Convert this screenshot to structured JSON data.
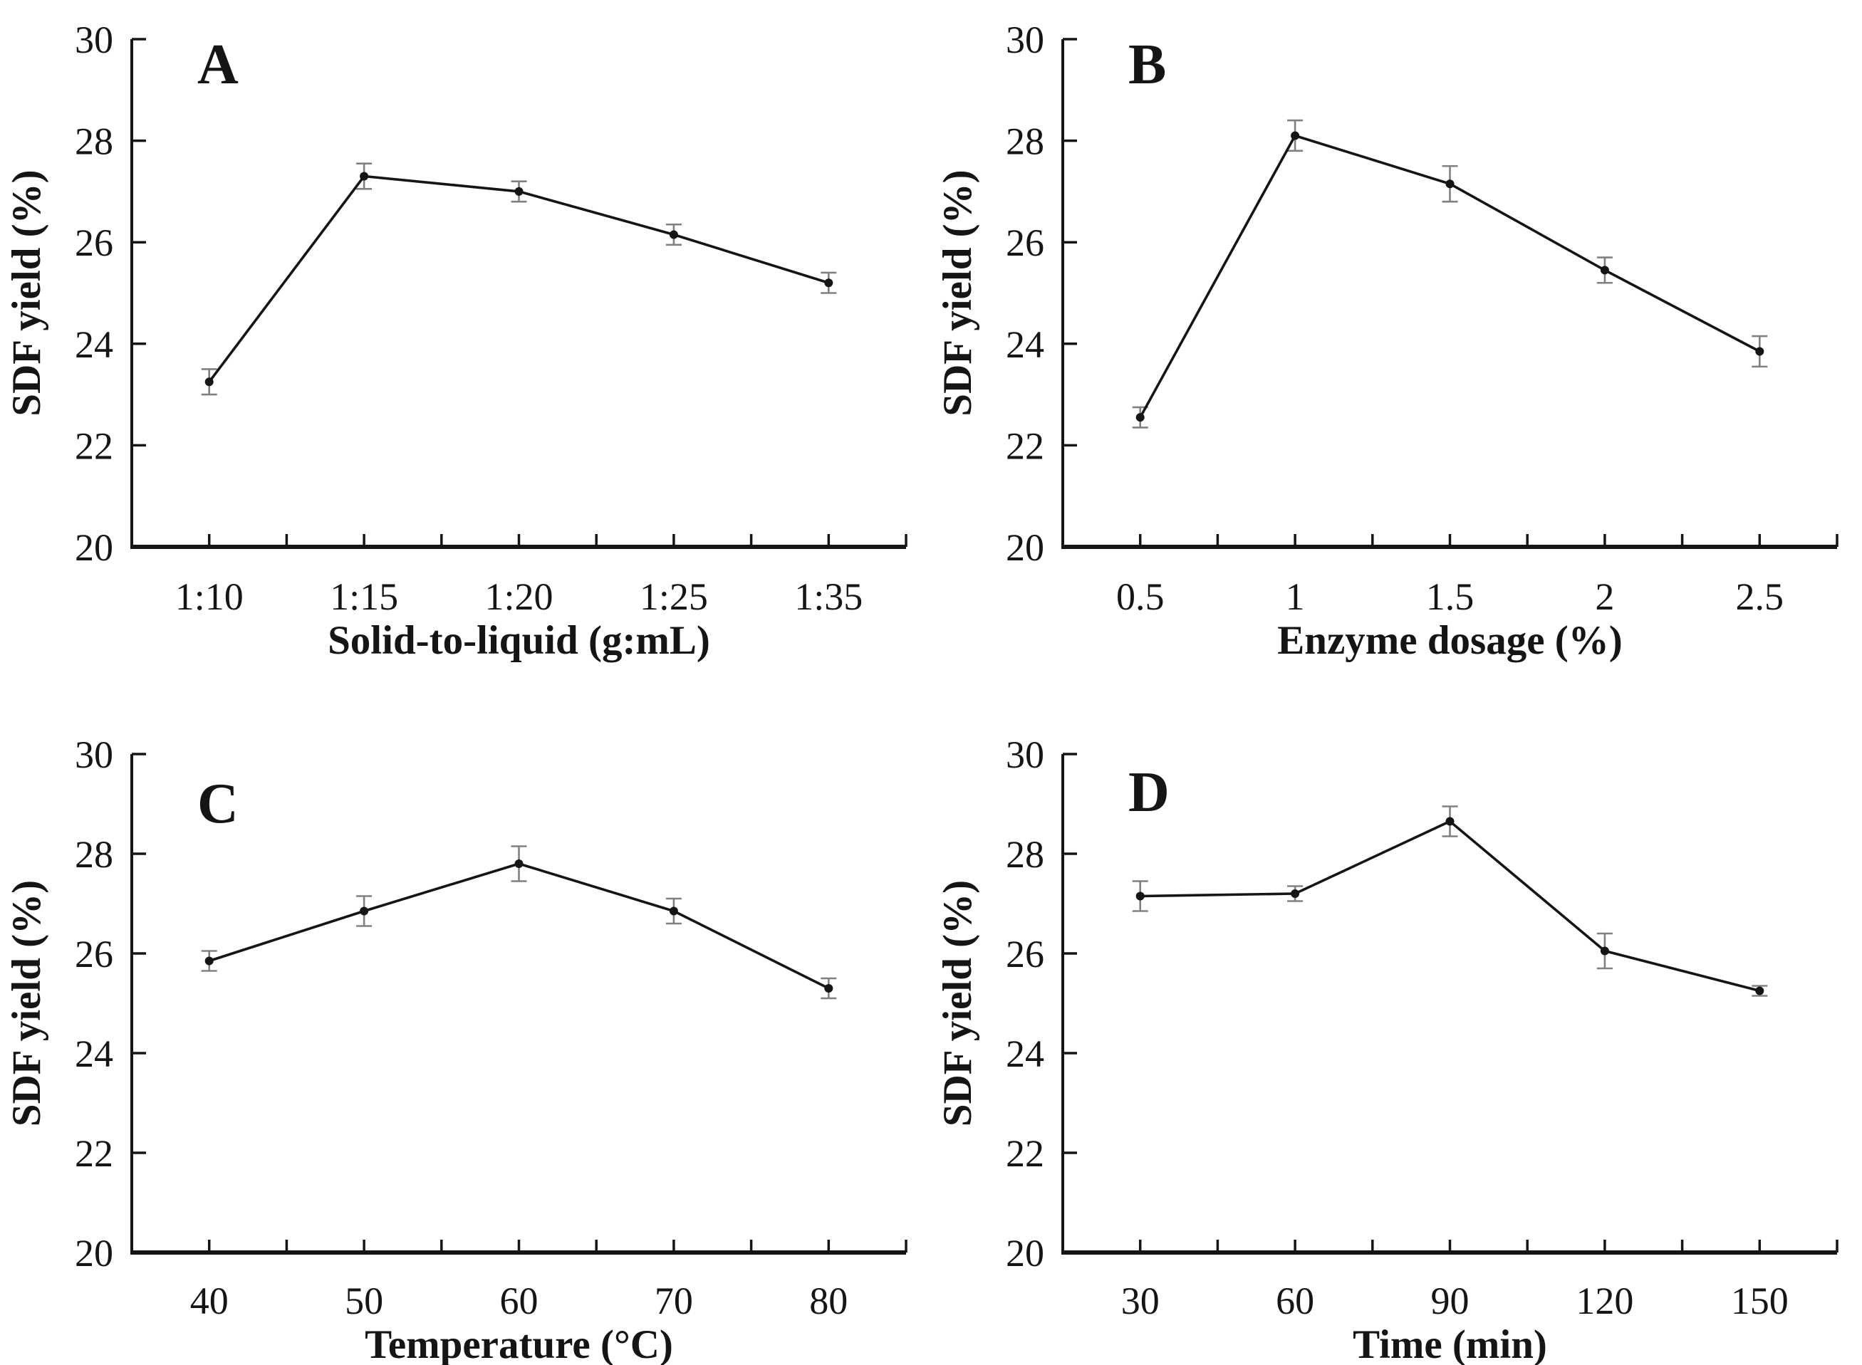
{
  "figure": {
    "background": "#ffffff",
    "ink_color": "#151515",
    "error_bar_color": "#808080",
    "shared_ylabel": "SDF yield (%)"
  },
  "chart_data": [
    {
      "type": "line",
      "panel_label": "A",
      "title": "",
      "xlabel": "Solid-to-liquid (g:mL)",
      "ylabel": "SDF yield (%)",
      "categories": [
        "1:10",
        "1:15",
        "1:20",
        "1:25",
        "1:35"
      ],
      "values": [
        23.25,
        27.3,
        27.0,
        26.15,
        25.2
      ],
      "errors": [
        0.25,
        0.25,
        0.2,
        0.2,
        0.2
      ],
      "ylim": [
        20,
        30
      ],
      "yticks": [
        20,
        22,
        24,
        26,
        28,
        30
      ],
      "grid": false,
      "legend": "none",
      "marker": "circle",
      "series_color": "#151515"
    },
    {
      "type": "line",
      "panel_label": "B",
      "title": "",
      "xlabel": "Enzyme dosage (%)",
      "ylabel": "SDF yield (%)",
      "categories": [
        "0.5",
        "1",
        "1.5",
        "2",
        "2.5"
      ],
      "values": [
        22.55,
        28.1,
        27.15,
        25.45,
        23.85
      ],
      "errors": [
        0.2,
        0.3,
        0.35,
        0.25,
        0.3
      ],
      "ylim": [
        20,
        30
      ],
      "yticks": [
        20,
        22,
        24,
        26,
        28,
        30
      ],
      "grid": false,
      "legend": "none",
      "marker": "circle",
      "series_color": "#151515"
    },
    {
      "type": "line",
      "panel_label": "C",
      "title": "",
      "xlabel": "Temperature (°C)",
      "ylabel": "SDF yield (%)",
      "categories": [
        "40",
        "50",
        "60",
        "70",
        "80"
      ],
      "values": [
        25.85,
        26.85,
        27.8,
        26.85,
        25.3
      ],
      "errors": [
        0.2,
        0.3,
        0.35,
        0.25,
        0.2
      ],
      "ylim": [
        20,
        30
      ],
      "yticks": [
        20,
        22,
        24,
        26,
        28,
        30
      ],
      "grid": false,
      "legend": "none",
      "marker": "circle",
      "series_color": "#151515"
    },
    {
      "type": "line",
      "panel_label": "D",
      "title": "",
      "xlabel": "Time (min)",
      "ylabel": "SDF yield (%)",
      "categories": [
        "30",
        "60",
        "90",
        "120",
        "150"
      ],
      "values": [
        27.15,
        27.2,
        28.65,
        26.05,
        25.25
      ],
      "errors": [
        0.3,
        0.15,
        0.3,
        0.35,
        0.1
      ],
      "ylim": [
        20,
        30
      ],
      "yticks": [
        20,
        22,
        24,
        26,
        28,
        30
      ],
      "grid": false,
      "legend": "none",
      "marker": "circle",
      "series_color": "#151515"
    }
  ]
}
